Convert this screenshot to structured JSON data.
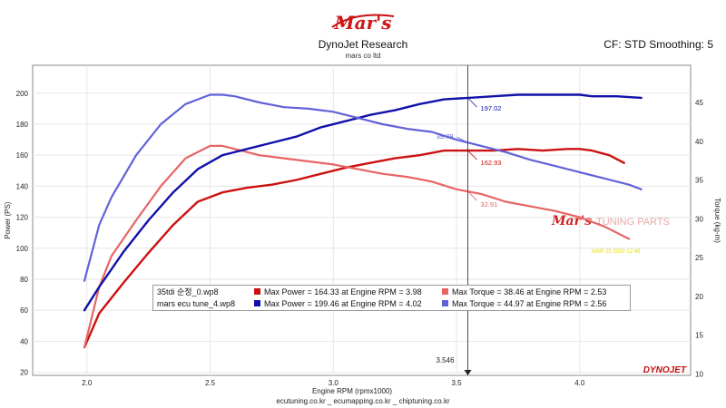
{
  "header": {
    "title": "DynoJet Research",
    "subtitle": "mars co ltd",
    "correction": "CF: STD Smoothing: 5",
    "logo_text": "Mar's"
  },
  "footer": "ecutuning.co.kr _ ecumapping.co.kr _ chiptuning.co.kr",
  "colors": {
    "run1_power": "#cc1111",
    "run1_torque": "#e86464",
    "run2_power": "#1111aa",
    "run2_torque": "#6262d8"
  },
  "legend": {
    "rows": [
      {
        "run": "35tdi 순정_0.wp8",
        "power": "Max Power = 164.33 at Engine RPM = 3.98",
        "torque": "Max Torque = 38.46 at Engine RPM = 2.53"
      },
      {
        "run": "mars ecu tune_4.wp8",
        "power": "Max Power = 199.46 at Engine RPM = 4.02",
        "torque": "Max Torque = 44.97 at Engine RPM = 2.56"
      }
    ]
  },
  "chart_data": {
    "type": "line",
    "xlabel": "Engine RPM (rpmx1000)",
    "ylabel_left": "Power (PS)",
    "ylabel_right": "Torque (kg-m)",
    "xlim": [
      1.78,
      4.45
    ],
    "ylim_left": [
      18,
      218
    ],
    "ylim_right": [
      9.8,
      49.8
    ],
    "x_ticks": [
      "2.0",
      "2.5",
      "3.0",
      "3.5",
      "4.0"
    ],
    "y_left_ticks": [
      "20",
      "40",
      "60",
      "80",
      "100",
      "120",
      "140",
      "160",
      "180",
      "200"
    ],
    "y_right_ticks": [
      "10",
      "15",
      "20",
      "25",
      "30",
      "35",
      "40",
      "45"
    ],
    "grid": true,
    "cursor": {
      "x": 3.546,
      "label": "3.546",
      "readouts": [
        {
          "value": "197.02",
          "series": "run2_power"
        },
        {
          "value": "39.79",
          "series": "run2_torque"
        },
        {
          "value": "162.93",
          "series": "run1_power"
        },
        {
          "value": "32.91",
          "series": "run1_torque"
        }
      ]
    },
    "watermark": {
      "brand": "Mar's",
      "text": "TUNING PARTS"
    },
    "date_stamp": "MAR 25 2020 12:48",
    "brand_mark": "DYNOJET",
    "series": [
      {
        "key": "run1_power",
        "axis": "left",
        "x": [
          1.99,
          2.05,
          2.15,
          2.25,
          2.35,
          2.45,
          2.55,
          2.65,
          2.75,
          2.85,
          2.95,
          3.05,
          3.15,
          3.25,
          3.35,
          3.45,
          3.55,
          3.65,
          3.75,
          3.85,
          3.95,
          4.0,
          4.05,
          4.12,
          4.18
        ],
        "y": [
          36,
          58,
          78,
          97,
          115,
          130,
          136,
          139,
          141,
          144,
          148,
          152,
          155,
          158,
          160,
          163,
          163,
          163,
          164,
          163,
          164,
          164,
          163,
          160,
          155
        ]
      },
      {
        "key": "run1_torque",
        "axis": "left",
        "x": [
          1.99,
          2.05,
          2.1,
          2.2,
          2.3,
          2.4,
          2.5,
          2.55,
          2.6,
          2.7,
          2.8,
          2.9,
          3.0,
          3.1,
          3.2,
          3.3,
          3.4,
          3.5,
          3.6,
          3.7,
          3.8,
          3.9,
          4.0,
          4.1,
          4.2
        ],
        "y": [
          36,
          75,
          95,
          118,
          140,
          158,
          166,
          166,
          164,
          160,
          158,
          156,
          154,
          151,
          148,
          146,
          143,
          138,
          135,
          130,
          127,
          124,
          120,
          114,
          106
        ]
      },
      {
        "key": "run2_power",
        "axis": "left",
        "x": [
          1.99,
          2.05,
          2.15,
          2.25,
          2.35,
          2.45,
          2.55,
          2.65,
          2.75,
          2.85,
          2.95,
          3.05,
          3.15,
          3.25,
          3.35,
          3.45,
          3.55,
          3.65,
          3.75,
          3.85,
          3.95,
          4.0,
          4.05,
          4.15,
          4.25
        ],
        "y": [
          60,
          75,
          98,
          118,
          136,
          151,
          160,
          164,
          168,
          172,
          178,
          182,
          186,
          189,
          193,
          196,
          197,
          198,
          199,
          199,
          199,
          199,
          198,
          198,
          197
        ]
      },
      {
        "key": "run2_torque",
        "axis": "left",
        "x": [
          1.99,
          2.05,
          2.1,
          2.2,
          2.3,
          2.4,
          2.5,
          2.55,
          2.6,
          2.7,
          2.8,
          2.9,
          3.0,
          3.1,
          3.2,
          3.3,
          3.4,
          3.5,
          3.6,
          3.7,
          3.8,
          3.9,
          4.0,
          4.1,
          4.2,
          4.25
        ],
        "y": [
          79,
          115,
          133,
          160,
          180,
          193,
          199,
          199,
          198,
          194,
          191,
          190,
          188,
          184,
          180,
          177,
          175,
          170,
          166,
          162,
          157,
          153,
          149,
          145,
          141,
          138
        ]
      }
    ]
  }
}
